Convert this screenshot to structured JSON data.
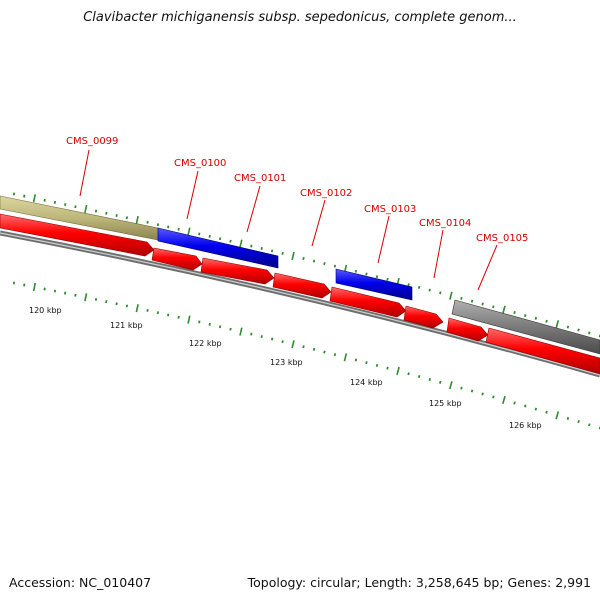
{
  "title": "Clavibacter michiganensis subsp. sepedonicus, complete genom...",
  "accession": "Accession: NC_010407",
  "summary": "Topology: circular; Length: 3,258,645 bp; Genes: 2,991",
  "colors": {
    "cds": "#ff0000",
    "gene_blue": "#0000ee",
    "gene_olive": "#bdb77b",
    "gene_gray": "#7a7a7a",
    "backbone": "#888888",
    "ticks": "#2e8b2e",
    "label": "#d40000"
  },
  "gene_labels": [
    "CMS_0099",
    "CMS_0100",
    "CMS_0101",
    "CMS_0102",
    "CMS_0103",
    "CMS_0104",
    "CMS_0105"
  ],
  "kbp_labels": [
    "120 kbp",
    "121 kbp",
    "122 kbp",
    "123 kbp",
    "124 kbp",
    "125 kbp",
    "126 kbp"
  ]
}
